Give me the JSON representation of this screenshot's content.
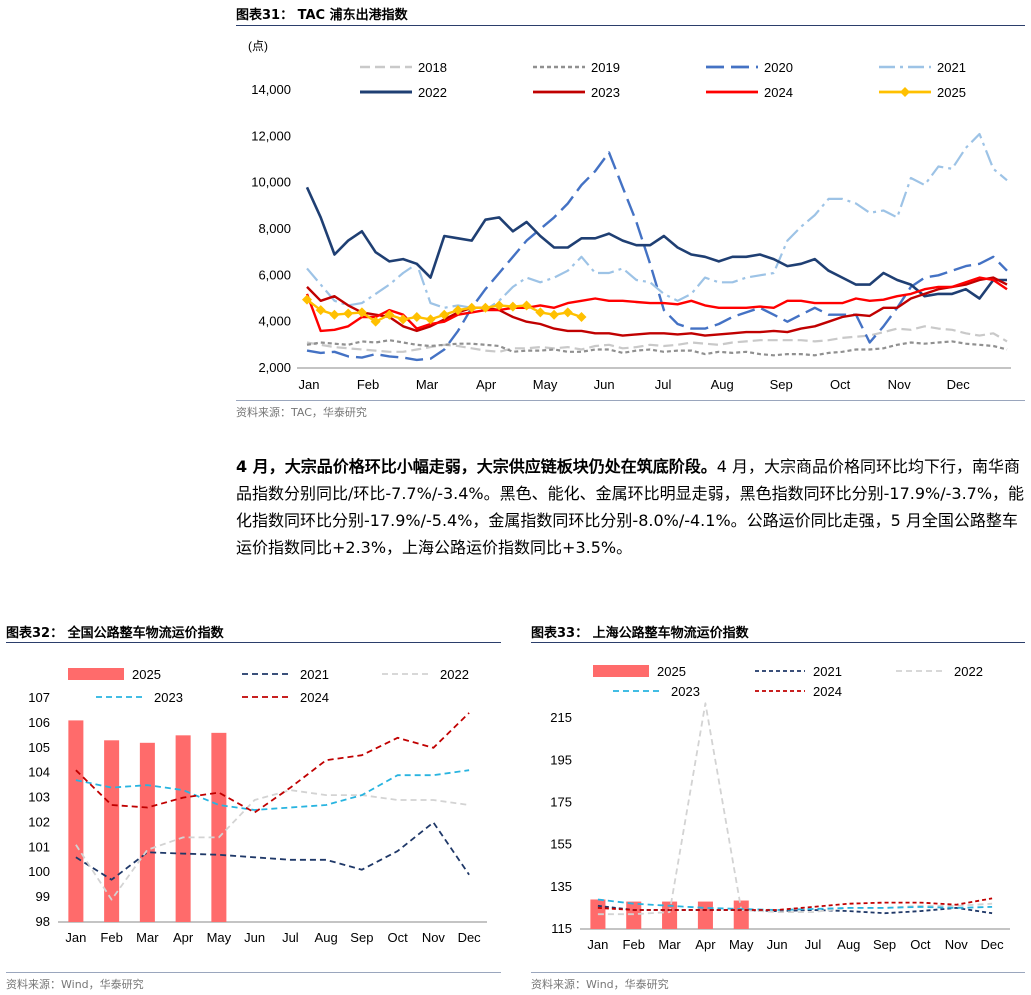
{
  "fig31": {
    "title": "图表31： TAC 浦东出港指数",
    "source": "资料来源：TAC，华泰研究"
  },
  "paragraph": {
    "lead": "4 月，大宗品价格环比小幅走弱，大宗供应链板块仍处在筑底阶段。",
    "body": "4 月，大宗商品价格同环比均下行，南华商品指数分别同比/环比-7.7%/-3.4%。黑色、能化、金属环比明显走弱，黑色指数同环比分别-17.9%/-3.7%，能化指数同环比分别-17.9%/-5.4%，金属指数同环比分别-8.0%/-4.1%。公路运价同比走强，5 月全国公路整车运价指数同比+2.3%，上海公路运价指数同比+3.5%。"
  },
  "fig32": {
    "title": "图表32： 全国公路整车物流运价指数",
    "source": "资料来源：Wind，华泰研究"
  },
  "fig33": {
    "title": "图表33： 上海公路整车物流运价指数",
    "source": "资料来源：Wind，华泰研究"
  },
  "chart_data": [
    {
      "id": "tac",
      "type": "line",
      "unit_label": "(点)",
      "ylim": [
        2000,
        14000
      ],
      "yticks": [
        2000,
        4000,
        6000,
        8000,
        10000,
        12000,
        14000
      ],
      "ytick_labels": [
        "2,000",
        "4,000",
        "6,000",
        "8,000",
        "10,000",
        "12,000",
        "14,000"
      ],
      "x_range": [
        1,
        52
      ],
      "xticks": [
        1,
        5.3,
        9.6,
        13.9,
        18.2,
        22.5,
        26.8,
        31.1,
        35.4,
        39.7,
        44,
        48.3
      ],
      "xtick_labels": [
        "Jan",
        "Feb",
        "Mar",
        "Apr",
        "May",
        "Jun",
        "Jul",
        "Aug",
        "Sep",
        "Oct",
        "Nov",
        "Dec"
      ],
      "grid": false,
      "legend_position": "top",
      "series": [
        {
          "name": "2018",
          "color": "#c9c9c9",
          "dash": "10,5",
          "width": 2.2,
          "values": [
            3100,
            3000,
            2900,
            2850,
            2800,
            2750,
            2700,
            2700,
            2800,
            2900,
            3000,
            2950,
            2850,
            2750,
            2700,
            2850,
            2850,
            2900,
            2850,
            2900,
            2800,
            2950,
            3000,
            2850,
            2900,
            3000,
            2950,
            3000,
            3100,
            3050,
            3000,
            3100,
            3150,
            3200,
            3200,
            3200,
            3200,
            3150,
            3200,
            3300,
            3350,
            3400,
            3550,
            3700,
            3650,
            3800,
            3700,
            3650,
            3500,
            3400,
            3500,
            3150
          ]
        },
        {
          "name": "2019",
          "color": "#909090",
          "dash": "4,3",
          "width": 2.2,
          "values": [
            3000,
            3100,
            3050,
            3000,
            3150,
            3100,
            3200,
            3100,
            3000,
            2950,
            3000,
            3050,
            3050,
            3000,
            2950,
            2700,
            2750,
            2750,
            2800,
            2700,
            2700,
            2800,
            2800,
            2650,
            2750,
            2800,
            2700,
            2750,
            2750,
            2600,
            2700,
            2650,
            2700,
            2600,
            2550,
            2600,
            2600,
            2550,
            2650,
            2700,
            2800,
            2800,
            2850,
            3000,
            3100,
            3050,
            3100,
            3150,
            3050,
            3000,
            2950,
            2800
          ]
        },
        {
          "name": "2020",
          "color": "#4472c4",
          "dash": "18,7",
          "width": 2.4,
          "values": [
            2750,
            2650,
            2700,
            2500,
            2450,
            2600,
            2500,
            2450,
            2350,
            2400,
            2800,
            3600,
            4600,
            5400,
            6100,
            6800,
            7500,
            8000,
            8500,
            9100,
            9900,
            10500,
            11300,
            9800,
            8300,
            6500,
            4500,
            3900,
            3700,
            3700,
            3900,
            4200,
            4400,
            4600,
            4300,
            4000,
            4300,
            4600,
            4300,
            4300,
            4300,
            3100,
            3800,
            4600,
            5500,
            5900,
            6000,
            6200,
            6400,
            6500,
            6800,
            6200
          ]
        },
        {
          "name": "2021",
          "color": "#9dc3e6",
          "dash": "16,5,3,5",
          "width": 2.2,
          "values": [
            6300,
            5600,
            4900,
            4700,
            4800,
            5200,
            5600,
            6100,
            6500,
            4800,
            4600,
            4700,
            4600,
            4500,
            4900,
            5500,
            5900,
            5700,
            5900,
            6200,
            6800,
            6100,
            6100,
            6300,
            5800,
            5700,
            5200,
            4900,
            5200,
            5900,
            5700,
            5700,
            5900,
            6000,
            6100,
            7500,
            8100,
            8600,
            9300,
            9300,
            9100,
            8700,
            8800,
            8500,
            10200,
            9900,
            10700,
            10600,
            11500,
            12100,
            10600,
            10100
          ]
        },
        {
          "name": "2022",
          "color": "#1f3f73",
          "dash": "",
          "width": 2.6,
          "values": [
            9800,
            8500,
            6900,
            7500,
            7900,
            7000,
            6600,
            6700,
            6500,
            5900,
            7700,
            7600,
            7500,
            8400,
            8500,
            7900,
            8300,
            7700,
            7200,
            7200,
            7600,
            7600,
            7800,
            7500,
            7300,
            7300,
            7700,
            7200,
            6900,
            6800,
            6600,
            6800,
            6800,
            6900,
            6700,
            6400,
            6500,
            6700,
            6200,
            5900,
            5600,
            5600,
            6100,
            5800,
            5600,
            5100,
            5200,
            5200,
            5400,
            5000,
            5800,
            5800
          ]
        },
        {
          "name": "2023",
          "color": "#c00000",
          "dash": "",
          "width": 2.4,
          "values": [
            5500,
            4900,
            5100,
            4700,
            4400,
            4300,
            4200,
            3800,
            3600,
            3800,
            4100,
            4400,
            4600,
            4600,
            4500,
            4200,
            4000,
            3900,
            3700,
            3600,
            3600,
            3500,
            3500,
            3400,
            3450,
            3500,
            3500,
            3450,
            3500,
            3400,
            3450,
            3500,
            3550,
            3550,
            3600,
            3550,
            3700,
            3800,
            4000,
            4200,
            4300,
            4250,
            4600,
            4600,
            5000,
            5200,
            5400,
            5500,
            5600,
            5800,
            5900,
            5600
          ]
        },
        {
          "name": "2024",
          "color": "#ff0000",
          "dash": "",
          "width": 2.4,
          "values": [
            5200,
            3600,
            3650,
            3800,
            4200,
            4200,
            4500,
            4300,
            3700,
            3900,
            4000,
            4300,
            4400,
            4500,
            4500,
            4600,
            4600,
            4700,
            4600,
            4800,
            4900,
            5000,
            4900,
            4900,
            4850,
            4800,
            4800,
            4750,
            4900,
            4700,
            4600,
            4600,
            4600,
            4650,
            4600,
            4900,
            4900,
            4800,
            4800,
            4800,
            5000,
            4900,
            4950,
            5100,
            5200,
            5400,
            5500,
            5500,
            5700,
            5900,
            5800,
            5400
          ]
        },
        {
          "name": "2025",
          "color": "#ffc000",
          "dash": "",
          "width": 2.4,
          "marker": "diamond",
          "values": [
            4950,
            4500,
            4300,
            4350,
            4400,
            4000,
            4300,
            4100,
            4200,
            4100,
            4300,
            4500,
            4600,
            4600,
            4700,
            4650,
            4700,
            4400,
            4300,
            4400,
            4200
          ]
        }
      ]
    },
    {
      "id": "national",
      "type": "bar",
      "categories": [
        "Jan",
        "Feb",
        "Mar",
        "Apr",
        "May",
        "Jun",
        "Jul",
        "Aug",
        "Sep",
        "Oct",
        "Nov",
        "Dec"
      ],
      "ylim": [
        98,
        107
      ],
      "yticks": [
        98,
        99,
        100,
        101,
        102,
        103,
        104,
        105,
        106,
        107
      ],
      "grid": false,
      "legend_position": "top",
      "bars": {
        "name": "2025",
        "color": "#ff6b6b",
        "values": [
          106.1,
          105.3,
          105.2,
          105.5,
          105.6
        ]
      },
      "series": [
        {
          "name": "2021",
          "color": "#1f3868",
          "dash": "6,4",
          "values": [
            100.6,
            99.7,
            100.8,
            100.75,
            100.7,
            100.6,
            100.5,
            100.5,
            100.1,
            100.85,
            102.0,
            99.9
          ]
        },
        {
          "name": "2022",
          "color": "#d3d3d3",
          "dash": "6,4",
          "values": [
            101.1,
            98.9,
            100.9,
            101.4,
            101.4,
            102.9,
            103.3,
            103.1,
            103.1,
            102.9,
            102.9,
            102.7
          ]
        },
        {
          "name": "2023",
          "color": "#28b4e0",
          "dash": "6,4",
          "values": [
            103.7,
            103.4,
            103.5,
            103.3,
            102.7,
            102.5,
            102.6,
            102.7,
            103.1,
            103.9,
            103.9,
            104.1
          ]
        },
        {
          "name": "2024",
          "color": "#c00000",
          "dash": "6,4",
          "values": [
            104.1,
            102.7,
            102.6,
            103.0,
            103.2,
            102.4,
            103.4,
            104.5,
            104.7,
            105.4,
            105.0,
            106.4
          ]
        }
      ]
    },
    {
      "id": "shanghai",
      "type": "bar",
      "categories": [
        "Jan",
        "Feb",
        "Mar",
        "Apr",
        "May",
        "Jun",
        "Jul",
        "Aug",
        "Sep",
        "Oct",
        "Nov",
        "Dec"
      ],
      "ylim": [
        115,
        225
      ],
      "yticks": [
        115,
        135,
        155,
        175,
        195,
        215
      ],
      "grid": false,
      "legend_position": "top",
      "bars": {
        "name": "2025",
        "color": "#ff6b6b",
        "values": [
          129.0,
          128.0,
          128.0,
          128.0,
          128.5
        ]
      },
      "series": [
        {
          "name": "2021",
          "color": "#1f3868",
          "dash": "4,3",
          "values": [
            126.0,
            124.0,
            124.0,
            124.0,
            124.0,
            123.5,
            124.0,
            123.5,
            122.5,
            123.5,
            125.0,
            122.5
          ]
        },
        {
          "name": "2022",
          "color": "#d3d3d3",
          "dash": "6,4",
          "values": [
            122.0,
            122.0,
            123.0,
            222.0,
            124.0,
            123.0,
            123.0,
            125.0,
            125.0,
            126.0,
            126.0,
            127.0
          ]
        },
        {
          "name": "2023",
          "color": "#28b4e0",
          "dash": "6,4",
          "values": [
            129.0,
            127.0,
            126.0,
            125.0,
            124.5,
            124.0,
            124.5,
            125.0,
            125.0,
            125.5,
            125.0,
            125.5
          ]
        },
        {
          "name": "2024",
          "color": "#c00000",
          "dash": "4,3",
          "values": [
            125.0,
            124.0,
            124.0,
            124.0,
            124.0,
            124.0,
            125.5,
            127.0,
            127.5,
            127.5,
            126.5,
            129.5
          ]
        }
      ]
    }
  ]
}
